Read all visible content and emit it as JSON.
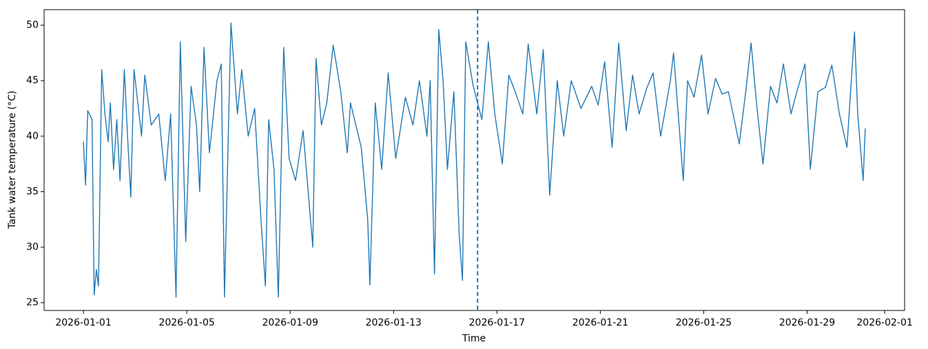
{
  "chart_data": {
    "type": "line",
    "x_label": "Time",
    "y_label": "Tank water temperature (°C)",
    "x": [
      "2026-01-01T00:00",
      "2026-01-01T02:00",
      "2026-01-01T04:00",
      "2026-01-01T08:00",
      "2026-01-01T10:00",
      "2026-01-01T12:00",
      "2026-01-01T14:00",
      "2026-01-01T17:00",
      "2026-01-01T20:00",
      "2026-01-01T23:00",
      "2026-01-02T01:00",
      "2026-01-02T04:00",
      "2026-01-02T07:00",
      "2026-01-02T10:00",
      "2026-01-02T14:00",
      "2026-01-02T17:00",
      "2026-01-02T20:00",
      "2026-01-02T23:00",
      "2026-01-03T06:00",
      "2026-01-03T09:00",
      "2026-01-03T15:00",
      "2026-01-03T22:00",
      "2026-01-04T04:00",
      "2026-01-04T09:00",
      "2026-01-04T14:00",
      "2026-01-04T18:00",
      "2026-01-04T23:00",
      "2026-01-05T04:00",
      "2026-01-05T09:00",
      "2026-01-05T12:00",
      "2026-01-05T16:00",
      "2026-01-05T21:00",
      "2026-01-06T04:00",
      "2026-01-06T08:00",
      "2026-01-06T11:00",
      "2026-01-06T17:00",
      "2026-01-06T23:00",
      "2026-01-07T03:00",
      "2026-01-07T09:00",
      "2026-01-07T15:00",
      "2026-01-07T21:00",
      "2026-01-08T01:00",
      "2026-01-08T04:00",
      "2026-01-08T09:00",
      "2026-01-08T13:00",
      "2026-01-08T18:00",
      "2026-01-08T23:00",
      "2026-01-09T05:00",
      "2026-01-09T12:00",
      "2026-01-09T21:00",
      "2026-01-10T00:00",
      "2026-01-10T05:00",
      "2026-01-10T10:00",
      "2026-01-10T16:00",
      "2026-01-10T23:00",
      "2026-01-11T05:00",
      "2026-01-11T08:00",
      "2026-01-11T18:00",
      "2026-01-12T00:00",
      "2026-01-12T02:00",
      "2026-01-12T07:00",
      "2026-01-12T13:00",
      "2026-01-12T19:00",
      "2026-01-13T02:00",
      "2026-01-13T11:00",
      "2026-01-13T18:00",
      "2026-01-14T00:00",
      "2026-01-14T07:00",
      "2026-01-14T10:00",
      "2026-01-14T14:00",
      "2026-01-14T18:00",
      "2026-01-14T22:00",
      "2026-01-15T02:00",
      "2026-01-15T08:00",
      "2026-01-15T13:00",
      "2026-01-15T16:00",
      "2026-01-15T19:00",
      "2026-01-16T02:00",
      "2026-01-16T10:00",
      "2026-01-16T16:00",
      "2026-01-16T22:00",
      "2026-01-17T05:00",
      "2026-01-17T11:00",
      "2026-01-17T17:00",
      "2026-01-18T00:00",
      "2026-01-18T05:00",
      "2026-01-18T13:00",
      "2026-01-18T19:00",
      "2026-01-19T01:00",
      "2026-01-19T08:00",
      "2026-01-19T14:00",
      "2026-01-19T21:00",
      "2026-01-20T06:00",
      "2026-01-20T16:00",
      "2026-01-20T22:00",
      "2026-01-21T04:00",
      "2026-01-21T11:00",
      "2026-01-21T17:00",
      "2026-01-22T00:00",
      "2026-01-22T06:00",
      "2026-01-22T12:00",
      "2026-01-22T19:00",
      "2026-01-23T01:00",
      "2026-01-23T08:00",
      "2026-01-23T17:00",
      "2026-01-23T20:00",
      "2026-01-24T05:00",
      "2026-01-24T09:00",
      "2026-01-24T15:00",
      "2026-01-24T22:00",
      "2026-01-25T04:00",
      "2026-01-25T11:00",
      "2026-01-25T17:00",
      "2026-01-25T23:00",
      "2026-01-26T09:00",
      "2026-01-26T15:00",
      "2026-01-26T20:00",
      "2026-01-27T01:00",
      "2026-01-27T07:00",
      "2026-01-27T14:00",
      "2026-01-27T20:00",
      "2026-01-28T02:00",
      "2026-01-28T09:00",
      "2026-01-28T15:00",
      "2026-01-28T22:00",
      "2026-01-29T03:00",
      "2026-01-29T10:00",
      "2026-01-29T17:00",
      "2026-01-29T23:00",
      "2026-01-30T06:00",
      "2026-01-30T13:00",
      "2026-01-30T20:00",
      "2026-01-30T23:00",
      "2026-01-31T04:00",
      "2026-01-31T06:00"
    ],
    "series": [
      {
        "color": "#1f77b4",
        "values": [
          39.5,
          35.6,
          42.3,
          41.5,
          25.7,
          28,
          26.5,
          46,
          42,
          39.5,
          43,
          37,
          41.5,
          36,
          46,
          40,
          34.5,
          46,
          40,
          45.5,
          41,
          42,
          36,
          42,
          25.5,
          48.5,
          30.5,
          44.5,
          41,
          35,
          48,
          38.5,
          45,
          46.5,
          25.5,
          50.2,
          42,
          46,
          40,
          42.5,
          32.3,
          26.5,
          41.5,
          37,
          25.5,
          48,
          38,
          36,
          40.5,
          30,
          47,
          41,
          43,
          48.2,
          44,
          38.5,
          43,
          39,
          32.5,
          26.6,
          43,
          37,
          45.7,
          38,
          43.5,
          41,
          45,
          40,
          45,
          27.6,
          49.6,
          45,
          37,
          44,
          31,
          27,
          48.5,
          44.5,
          41.5,
          48.5,
          42,
          37.5,
          45.5,
          44,
          42,
          48.3,
          42,
          47.8,
          34.7,
          45,
          40,
          45,
          42.5,
          44.5,
          42.8,
          46.7,
          39,
          48.4,
          40.5,
          45.5,
          42,
          44.3,
          45.7,
          40,
          45,
          47.5,
          36,
          45,
          43.5,
          47.3,
          42,
          45.2,
          43.8,
          44,
          39.3,
          44,
          48.4,
          43,
          37.5,
          44.5,
          43,
          46.5,
          42,
          44.2,
          46.5,
          37,
          44,
          44.4,
          46.4,
          42,
          39,
          49.4,
          42,
          36,
          40.7
        ]
      }
    ],
    "vline": {
      "x": "2026-01-16T06:00",
      "color": "#1f77b4",
      "style": "dashed"
    },
    "xlim": [
      "2025-12-30T11:30",
      "2026-02-01T18:30"
    ],
    "xticks": [
      "2026-01-01",
      "2026-01-05",
      "2026-01-09",
      "2026-01-13",
      "2026-01-17",
      "2026-01-21",
      "2026-01-25",
      "2026-01-29",
      "2026-02-01"
    ],
    "ylim": [
      24.3,
      51.4
    ],
    "yticks": [
      25,
      30,
      35,
      40,
      45,
      50
    ],
    "grid": false
  }
}
